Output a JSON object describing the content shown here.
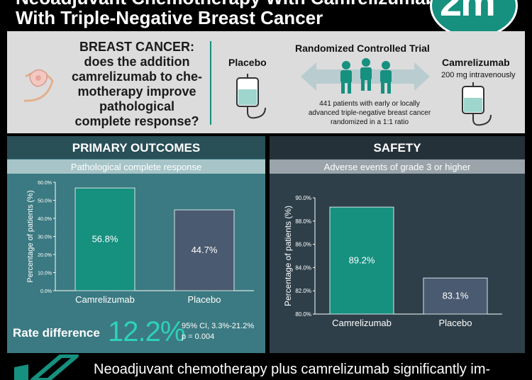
{
  "header": {
    "title_line1": "Neoadjuvant Chemotherapy With Camrelizumab",
    "title_line2": "With Triple-Negative Breast Cancer",
    "logo_text": "2m"
  },
  "intro": {
    "question": "BREAST CANCER: does the addition camrelizumab to che-motherapy improve pathological complete response?",
    "placebo_label": "Placebo",
    "trial_label": "Randomized Controlled Trial",
    "camrelizumab_label": "Camrelizumab",
    "camrelizumab_dose": "200 mg intravenously",
    "patients_text": "441 patients with early or locally advanced triple-negative breast cancer randomized in a 1:1 ratio"
  },
  "primary": {
    "title": "PRIMARY OUTCOMES",
    "subtitle": "Pathological complete response",
    "rate_label": "Rate difference",
    "rate_value": "12.2%",
    "rate_ci": "95% CI, 3.3%-21.2%",
    "rate_p": "p = 0.004"
  },
  "safety": {
    "title": "SAFETY",
    "subtitle": "Adverse events of grade 3 or higher"
  },
  "conclusion": {
    "text": "Neoadjuvant chemotherapy plus camrelizumab significantly im-"
  },
  "colors": {
    "teal": "#16907f",
    "slate": "#4a5a70",
    "accent": "#2ed1b9"
  },
  "chart_data": [
    {
      "type": "bar",
      "categories": [
        "Camrelizumab",
        "Placebo"
      ],
      "values": [
        56.8,
        44.7
      ],
      "value_labels": [
        "56.8%",
        "44.7%"
      ],
      "ylabel": "Percentage of patients (%)",
      "ylim": [
        0,
        60
      ],
      "yticks": [
        "0.0%",
        "10.0%",
        "20.0%",
        "30.0%",
        "40.0%",
        "50.0%",
        "60.0%"
      ]
    },
    {
      "type": "bar",
      "categories": [
        "Camrelizumab",
        "Placebo"
      ],
      "values": [
        89.2,
        83.1
      ],
      "value_labels": [
        "89.2%",
        "83.1%"
      ],
      "ylabel": "Percentage of patients (%)",
      "ylim": [
        80,
        90
      ],
      "yticks": [
        "80.0%",
        "82.0%",
        "84.0%",
        "86.0%",
        "88.0%",
        "90.0%"
      ]
    }
  ]
}
